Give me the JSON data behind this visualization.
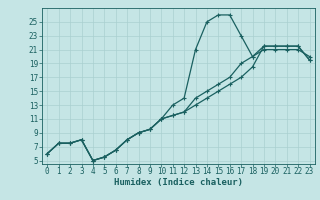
{
  "xlabel": "Humidex (Indice chaleur)",
  "bg_color": "#c5e5e5",
  "grid_color": "#aad0d0",
  "line_color": "#1a6060",
  "xlim": [
    -0.5,
    23.5
  ],
  "ylim": [
    4.5,
    27
  ],
  "xticks": [
    0,
    1,
    2,
    3,
    4,
    5,
    6,
    7,
    8,
    9,
    10,
    11,
    12,
    13,
    14,
    15,
    16,
    17,
    18,
    19,
    20,
    21,
    22,
    23
  ],
  "yticks": [
    5,
    7,
    9,
    11,
    13,
    15,
    17,
    19,
    21,
    23,
    25
  ],
  "curve1_x": [
    0,
    1,
    2,
    3,
    4,
    5,
    6,
    7,
    8,
    9,
    10,
    11,
    12,
    13,
    14,
    15,
    16,
    17,
    18,
    19,
    20,
    21,
    22,
    23
  ],
  "curve1_y": [
    6,
    7.5,
    7.5,
    8,
    5,
    5.5,
    6.5,
    8,
    9,
    9.5,
    11,
    13,
    14,
    21,
    25,
    26,
    26,
    23,
    20,
    21,
    21,
    21,
    21,
    20
  ],
  "curve2_x": [
    0,
    1,
    2,
    3,
    4,
    5,
    6,
    7,
    8,
    9,
    10,
    11,
    12,
    13,
    14,
    15,
    16,
    17,
    18,
    19,
    20,
    21,
    22,
    23
  ],
  "curve2_y": [
    6,
    7.5,
    7.5,
    8,
    5,
    5.5,
    6.5,
    8,
    9,
    9.5,
    11,
    11.5,
    12,
    14,
    15,
    16,
    17,
    19,
    20,
    21.5,
    21.5,
    21.5,
    21.5,
    19.5
  ],
  "curve3_x": [
    0,
    1,
    2,
    3,
    4,
    5,
    6,
    7,
    8,
    9,
    10,
    11,
    12,
    13,
    14,
    15,
    16,
    17,
    18,
    19,
    20,
    21,
    22,
    23
  ],
  "curve3_y": [
    6,
    7.5,
    7.5,
    8,
    5,
    5.5,
    6.5,
    8,
    9,
    9.5,
    11,
    11.5,
    12,
    13,
    14,
    15,
    16,
    17,
    18.5,
    21.5,
    21.5,
    21.5,
    21.5,
    19.5
  ],
  "tick_fontsize": 5.5,
  "xlabel_fontsize": 6.5,
  "lw": 0.9,
  "ms": 2.5
}
